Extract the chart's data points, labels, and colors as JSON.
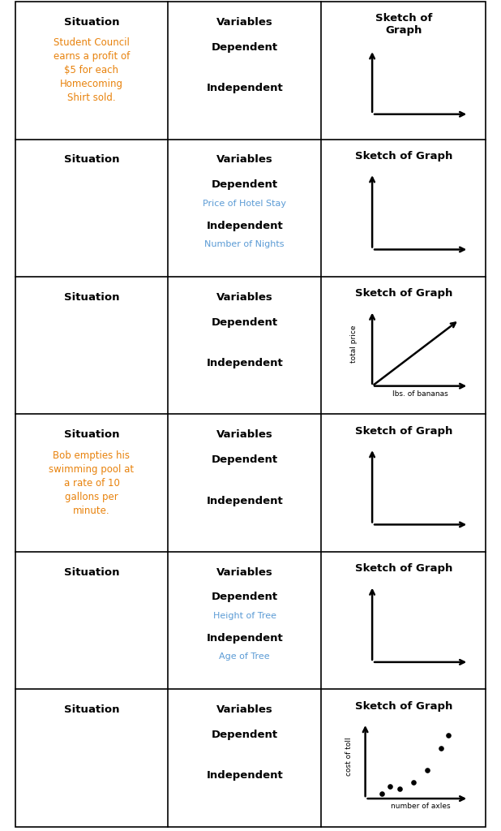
{
  "orange_color": "#E8820C",
  "blue_color": "#5B9BD5",
  "black_color": "#000000",
  "bg_color": "#FFFFFF",
  "border_color": "#000000",
  "rows": [
    {
      "situation_text": "Student Council\nearns a profit of\n$5 for each\nHomecoming\nShirt sold.",
      "situation_color": "#E8820C",
      "dep_sub": "",
      "dep_sub_color": "#5B9BD5",
      "ind_sub": "",
      "ind_sub_color": "#5B9BD5",
      "graph_content": "empty_axes",
      "graph_xlabel": "",
      "graph_ylabel": "",
      "sketch_header": "Sketch of\nGraph"
    },
    {
      "situation_text": "",
      "situation_color": "#E8820C",
      "dep_sub": "Price of Hotel Stay",
      "dep_sub_color": "#5B9BD5",
      "ind_sub": "Number of Nights",
      "ind_sub_color": "#5B9BD5",
      "graph_content": "empty_axes",
      "graph_xlabel": "",
      "graph_ylabel": "",
      "sketch_header": "Sketch of Graph"
    },
    {
      "situation_text": "",
      "situation_color": "#E8820C",
      "dep_sub": "",
      "dep_sub_color": "#5B9BD5",
      "ind_sub": "",
      "ind_sub_color": "#5B9BD5",
      "graph_content": "diagonal_line",
      "graph_xlabel": "lbs. of bananas",
      "graph_ylabel": "total price",
      "sketch_header": "Sketch of Graph"
    },
    {
      "situation_text": "Bob empties his\nswimming pool at\na rate of 10\ngallons per\nminute.",
      "situation_color": "#E8820C",
      "dep_sub": "",
      "dep_sub_color": "#5B9BD5",
      "ind_sub": "",
      "ind_sub_color": "#5B9BD5",
      "graph_content": "empty_axes",
      "graph_xlabel": "",
      "graph_ylabel": "",
      "sketch_header": "Sketch of Graph"
    },
    {
      "situation_text": "",
      "situation_color": "#E8820C",
      "dep_sub": "Height of Tree",
      "dep_sub_color": "#5B9BD5",
      "ind_sub": "Age of Tree",
      "ind_sub_color": "#5B9BD5",
      "graph_content": "empty_axes",
      "graph_xlabel": "",
      "graph_ylabel": "",
      "sketch_header": "Sketch of Graph"
    },
    {
      "situation_text": "",
      "situation_color": "#E8820C",
      "dep_sub": "",
      "dep_sub_color": "#5B9BD5",
      "ind_sub": "",
      "ind_sub_color": "#5B9BD5",
      "graph_content": "scatter_points",
      "graph_xlabel": "number of axles",
      "graph_ylabel": "cost of toll",
      "sketch_header": "Sketch of Graph"
    }
  ]
}
